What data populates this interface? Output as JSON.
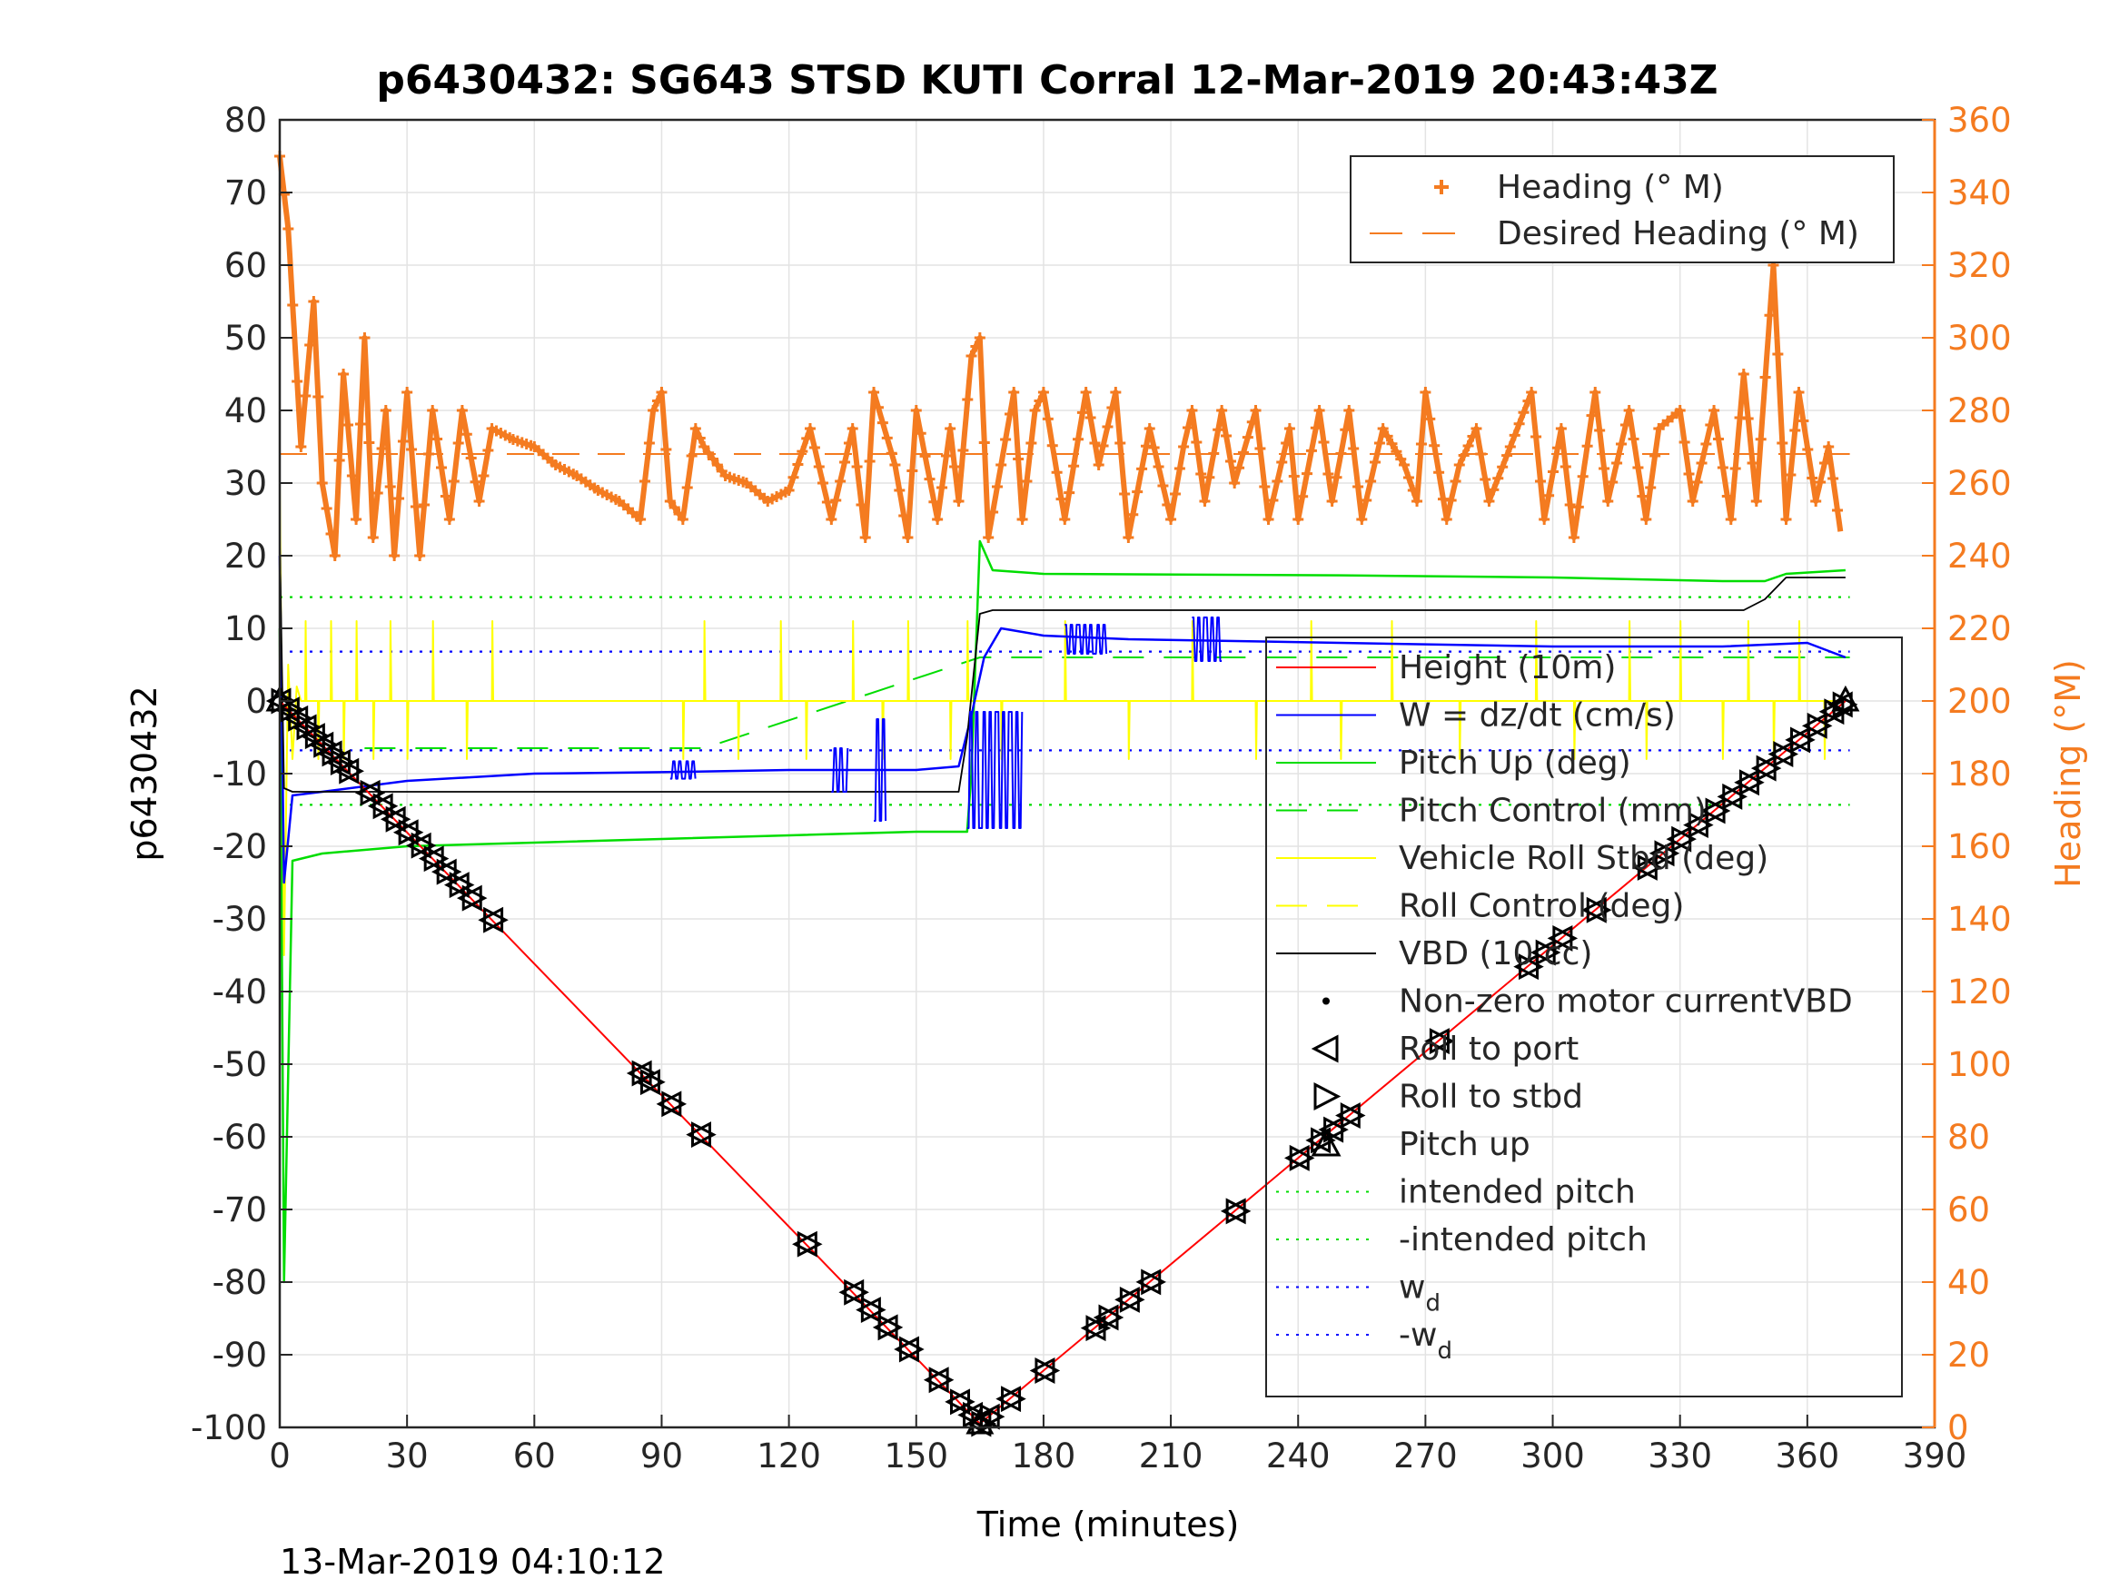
{
  "chart_data": {
    "type": "line",
    "title": "p6430432: SG643 STSD KUTI Corral 12-Mar-2019 20:43:43Z",
    "xlabel": "Time (minutes)",
    "ylabel_left": "p6430432",
    "ylabel_right": "Heading (°M)",
    "footer": "13-Mar-2019 04:10:12",
    "xlim": [
      0,
      390
    ],
    "ylim_left": [
      -100,
      80
    ],
    "ylim_right": [
      0,
      360
    ],
    "x_ticks": [
      0,
      30,
      60,
      90,
      120,
      150,
      180,
      210,
      240,
      270,
      300,
      330,
      360,
      390
    ],
    "y_ticks_left": [
      80,
      70,
      60,
      50,
      40,
      30,
      20,
      10,
      0,
      -10,
      -20,
      -30,
      -40,
      -50,
      -60,
      -70,
      -80,
      -90,
      -100
    ],
    "y_ticks_right": [
      360,
      340,
      320,
      300,
      280,
      260,
      240,
      220,
      200,
      180,
      160,
      140,
      120,
      100,
      80,
      60,
      40,
      20,
      0
    ],
    "grid": true,
    "colors": {
      "heading": "#f47b20",
      "height": "#ff0000",
      "w": "#0000ff",
      "pitch": "#00dd00",
      "roll": "#ffff00",
      "vbd": "#000000"
    },
    "legend_heading": {
      "placement": "top-right",
      "entries": [
        "Heading (° M)",
        "Desired Heading (° M)"
      ]
    },
    "legend_main": {
      "placement": "right",
      "entries": [
        "Height (10m)",
        "W = dz/dt (cm/s)",
        "Pitch Up (deg)",
        "Pitch Control (mm)",
        "Vehicle Roll Stbd (deg)",
        "Roll Control (deg)",
        "VBD (10 cc)",
        "Non-zero motor currentVBD",
        "Roll to port",
        "Roll to stbd",
        "Pitch up",
        "intended pitch",
        "-intended pitch",
        "w",
        "-w"
      ],
      "subscript": "d"
    },
    "series": [
      {
        "name": "Height (10m)",
        "x": [
          0,
          165,
          369
        ],
        "y": [
          0,
          -99.5,
          0
        ]
      },
      {
        "name": "W = dz/dt (cm/s)",
        "x": [
          0,
          1,
          3,
          10,
          30,
          60,
          90,
          120,
          150,
          160,
          163,
          166,
          170,
          180,
          200,
          250,
          300,
          340,
          360,
          369
        ],
        "y": [
          20,
          -25,
          -13,
          -12.5,
          -11,
          -10,
          -9.8,
          -9.5,
          -9.5,
          -9,
          -2,
          6,
          10,
          9,
          8.5,
          8,
          7.5,
          7.5,
          8,
          6
        ]
      },
      {
        "name": "Pitch Up (deg)",
        "x": [
          0,
          1,
          3,
          10,
          30,
          60,
          90,
          120,
          150,
          162,
          163,
          165,
          168,
          180,
          250,
          300,
          340,
          350,
          355,
          369
        ],
        "y": [
          10,
          -80,
          -22,
          -21,
          -20,
          -19.5,
          -19,
          -18.5,
          -18,
          -18,
          -10,
          22,
          18,
          17.5,
          17.3,
          17,
          16.5,
          16.5,
          17.5,
          18
        ]
      },
      {
        "name": "VBD (10 cc)",
        "x": [
          0,
          1,
          3,
          160,
          162,
          165,
          168,
          345,
          350,
          355,
          369
        ],
        "y": [
          22,
          -12,
          -12.5,
          -12.5,
          -5,
          12,
          12.5,
          12.5,
          14,
          17,
          17
        ]
      },
      {
        "name": "intended pitch",
        "y": 14.3
      },
      {
        "name": "-intended pitch",
        "y": -14.3
      },
      {
        "name": "w",
        "y": 6.8
      },
      {
        "name": "-w",
        "y": -6.8
      },
      {
        "name": "Pitch Control (mm)",
        "x": [
          20,
          100,
          165,
          370
        ],
        "y": [
          -6.5,
          -6.5,
          6.0,
          6.0
        ]
      },
      {
        "name": "Desired Heading (° M)",
        "x": [
          0,
          370
        ],
        "y": [
          268,
          268
        ]
      },
      {
        "name": "Heading (° M)",
        "x": [
          0,
          2,
          5,
          8,
          10,
          13,
          15,
          18,
          20,
          22,
          25,
          27,
          30,
          33,
          36,
          40,
          43,
          47,
          50,
          55,
          60,
          65,
          70,
          75,
          80,
          85,
          88,
          90,
          92,
          95,
          98,
          100,
          105,
          110,
          115,
          120,
          125,
          128,
          130,
          135,
          138,
          140,
          145,
          148,
          150,
          155,
          158,
          160,
          163,
          165,
          167,
          170,
          173,
          175,
          178,
          180,
          185,
          190,
          193,
          197,
          200,
          205,
          210,
          213,
          215,
          218,
          222,
          225,
          230,
          233,
          238,
          240,
          245,
          248,
          252,
          255,
          260,
          265,
          268,
          270,
          275,
          278,
          282,
          285,
          290,
          295,
          298,
          302,
          305,
          310,
          313,
          318,
          322,
          325,
          330,
          333,
          338,
          342,
          345,
          348,
          352,
          355,
          358,
          362,
          365,
          368
        ],
        "y": [
          350,
          330,
          270,
          310,
          260,
          240,
          290,
          250,
          300,
          245,
          280,
          240,
          285,
          240,
          280,
          250,
          280,
          255,
          275,
          272,
          270,
          265,
          262,
          258,
          255,
          250,
          280,
          285,
          255,
          250,
          275,
          270,
          262,
          260,
          255,
          258,
          275,
          260,
          250,
          275,
          245,
          285,
          265,
          245,
          280,
          250,
          275,
          255,
          295,
          300,
          245,
          265,
          285,
          250,
          280,
          285,
          250,
          285,
          265,
          285,
          245,
          275,
          250,
          270,
          280,
          255,
          280,
          260,
          280,
          250,
          275,
          250,
          280,
          255,
          280,
          250,
          275,
          265,
          255,
          285,
          250,
          265,
          275,
          255,
          270,
          285,
          250,
          275,
          245,
          285,
          255,
          280,
          250,
          275,
          280,
          255,
          280,
          250,
          290,
          255,
          320,
          250,
          285,
          255,
          270,
          245
        ]
      }
    ],
    "roll_port_markers_x": [
      0,
      2,
      4,
      6,
      8,
      10,
      12,
      14,
      16,
      21,
      24,
      27,
      30,
      33,
      36,
      39,
      42,
      45,
      50,
      85,
      87,
      92,
      99,
      124,
      135,
      139,
      143,
      148,
      155,
      160,
      163,
      165,
      167,
      172,
      180,
      192,
      195,
      200,
      205,
      225,
      240,
      245,
      248,
      252,
      273,
      294,
      298,
      302,
      310,
      322,
      326,
      330,
      334,
      338,
      342,
      346,
      350,
      354,
      358,
      362,
      366,
      368
    ]
  }
}
